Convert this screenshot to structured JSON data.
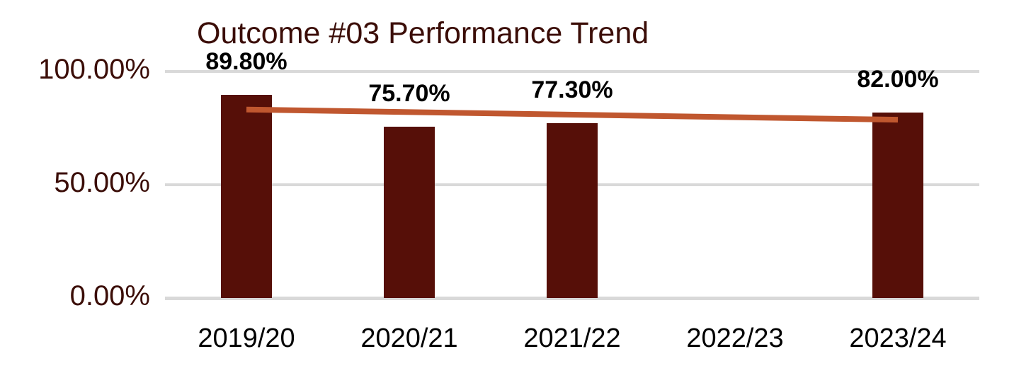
{
  "chart_data": {
    "type": "bar",
    "title": "Outcome #03 Performance Trend",
    "categories": [
      "2019/20",
      "2020/21",
      "2021/22",
      "2022/23",
      "2023/24"
    ],
    "series": [
      {
        "name": "Outcome #03 performance",
        "type": "bar",
        "values": [
          89.8,
          75.7,
          77.3,
          null,
          82.0
        ]
      },
      {
        "name": "Linear trend",
        "type": "line",
        "x_span": [
          "2019/20",
          "2023/24"
        ],
        "endpoint_values": [
          83.2,
          78.7
        ]
      }
    ],
    "data_labels": [
      "89.80%",
      "75.70%",
      "77.30%",
      null,
      "82.00%"
    ],
    "y_axis": {
      "tick_labels": [
        "100.00%",
        "50.00%",
        "0.00%"
      ],
      "tick_values": [
        100,
        50,
        0
      ],
      "range": [
        0,
        100
      ]
    },
    "x_axis": {
      "tick_labels": [
        "2019/20",
        "2020/21",
        "2021/22",
        "2022/23",
        "2023/24"
      ]
    },
    "grid": true,
    "legend": "none",
    "colors": {
      "bar": "#560F08",
      "trend_line": "#C0572F",
      "title_text": "#3B0D07",
      "y_axis_text": "#3B0D07",
      "x_axis_text": "#000000",
      "data_label_text": "#000000",
      "gridline": "#D9D9D9",
      "background": "#FFFFFF"
    }
  }
}
